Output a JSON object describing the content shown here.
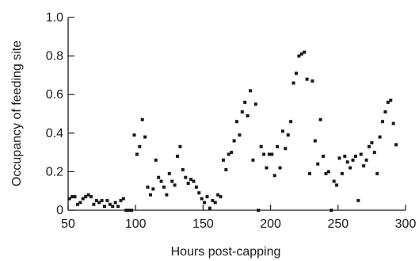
{
  "chart_data": {
    "type": "scatter",
    "title": "",
    "xlabel": "Hours post-capping",
    "ylabel": "Occupancy of feeding site",
    "xlim": [
      50,
      300
    ],
    "ylim": [
      0,
      1.0
    ],
    "x_ticks": [
      50,
      100,
      150,
      200,
      250,
      300
    ],
    "y_ticks": [
      0,
      0.2,
      0.4,
      0.6,
      0.8,
      1.0
    ],
    "x_tick_labels": [
      "50",
      "100",
      "150",
      "200",
      "250",
      "300"
    ],
    "y_tick_labels": [
      "0",
      "0.2",
      "0.4",
      "0.6",
      "0.8",
      "1.0"
    ],
    "grid": false,
    "legend": "none",
    "marker_color": "#1a1a1a",
    "series": [
      {
        "points": [
          [
            51,
            0.06
          ],
          [
            53,
            0.07
          ],
          [
            55,
            0.07
          ],
          [
            57,
            0.03
          ],
          [
            59,
            0.04
          ],
          [
            61,
            0.06
          ],
          [
            63,
            0.07
          ],
          [
            65,
            0.08
          ],
          [
            67,
            0.07
          ],
          [
            69,
            0.03
          ],
          [
            71,
            0.05
          ],
          [
            73,
            0.04
          ],
          [
            75,
            0.05
          ],
          [
            77,
            0.02
          ],
          [
            79,
            0.05
          ],
          [
            81,
            0.03
          ],
          [
            83,
            0.02
          ],
          [
            85,
            0.04
          ],
          [
            87,
            0.02
          ],
          [
            89,
            0.05
          ],
          [
            91,
            0.06
          ],
          [
            93,
            0.0
          ],
          [
            95,
            0.0
          ],
          [
            97,
            0.0
          ],
          [
            99,
            0.39
          ],
          [
            101,
            0.29
          ],
          [
            103,
            0.33
          ],
          [
            105,
            0.47
          ],
          [
            107,
            0.38
          ],
          [
            109,
            0.12
          ],
          [
            111,
            0.08
          ],
          [
            113,
            0.11
          ],
          [
            115,
            0.26
          ],
          [
            117,
            0.17
          ],
          [
            119,
            0.15
          ],
          [
            121,
            0.12
          ],
          [
            123,
            0.08
          ],
          [
            125,
            0.19
          ],
          [
            127,
            0.15
          ],
          [
            129,
            0.13
          ],
          [
            131,
            0.28
          ],
          [
            133,
            0.33
          ],
          [
            135,
            0.21
          ],
          [
            137,
            0.17
          ],
          [
            139,
            0.14
          ],
          [
            141,
            0.16
          ],
          [
            143,
            0.15
          ],
          [
            145,
            0.12
          ],
          [
            147,
            0.09
          ],
          [
            149,
            0.06
          ],
          [
            151,
            0.04
          ],
          [
            153,
            0.07
          ],
          [
            155,
            0.01
          ],
          [
            157,
            0.05
          ],
          [
            159,
            0.04
          ],
          [
            161,
            0.08
          ],
          [
            163,
            0.07
          ],
          [
            165,
            0.26
          ],
          [
            167,
            0.21
          ],
          [
            169,
            0.29
          ],
          [
            171,
            0.3
          ],
          [
            173,
            0.36
          ],
          [
            175,
            0.46
          ],
          [
            177,
            0.39
          ],
          [
            179,
            0.51
          ],
          [
            181,
            0.56
          ],
          [
            183,
            0.49
          ],
          [
            185,
            0.62
          ],
          [
            187,
            0.26
          ],
          [
            189,
            0.55
          ],
          [
            191,
            0.0
          ],
          [
            193,
            0.33
          ],
          [
            195,
            0.29
          ],
          [
            197,
            0.22
          ],
          [
            199,
            0.29
          ],
          [
            201,
            0.29
          ],
          [
            203,
            0.18
          ],
          [
            205,
            0.33
          ],
          [
            207,
            0.22
          ],
          [
            209,
            0.41
          ],
          [
            211,
            0.32
          ],
          [
            213,
            0.39
          ],
          [
            215,
            0.46
          ],
          [
            217,
            0.66
          ],
          [
            219,
            0.71
          ],
          [
            221,
            0.8
          ],
          [
            223,
            0.81
          ],
          [
            225,
            0.82
          ],
          [
            227,
            0.68
          ],
          [
            229,
            0.19
          ],
          [
            231,
            0.67
          ],
          [
            233,
            0.36
          ],
          [
            235,
            0.24
          ],
          [
            237,
            0.47
          ],
          [
            239,
            0.28
          ],
          [
            241,
            0.19
          ],
          [
            243,
            0.2
          ],
          [
            245,
            0.0
          ],
          [
            247,
            0.15
          ],
          [
            249,
            0.13
          ],
          [
            251,
            0.27
          ],
          [
            253,
            0.19
          ],
          [
            255,
            0.28
          ],
          [
            257,
            0.25
          ],
          [
            259,
            0.22
          ],
          [
            261,
            0.26
          ],
          [
            263,
            0.28
          ],
          [
            265,
            0.05
          ],
          [
            267,
            0.29
          ],
          [
            269,
            0.23
          ],
          [
            271,
            0.26
          ],
          [
            273,
            0.33
          ],
          [
            275,
            0.35
          ],
          [
            277,
            0.3
          ],
          [
            279,
            0.19
          ],
          [
            281,
            0.38
          ],
          [
            283,
            0.46
          ],
          [
            285,
            0.51
          ],
          [
            287,
            0.56
          ],
          [
            289,
            0.57
          ],
          [
            291,
            0.45
          ],
          [
            293,
            0.34
          ]
        ]
      }
    ]
  }
}
